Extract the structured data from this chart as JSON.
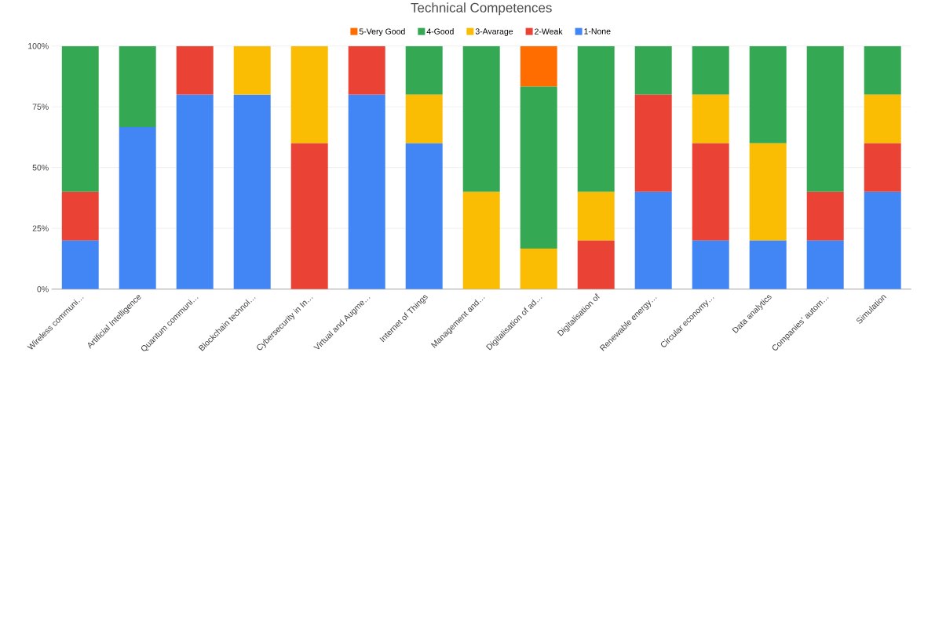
{
  "chart_data": {
    "type": "bar",
    "title": "Technical Competences",
    "categories": [
      "Wireless communi…",
      "Artificial Intelligence",
      "Quantum communi…",
      "Blockchain technol…",
      "Cybersecurity in In…",
      "Virtual and Augme…",
      "Internet of Things",
      "Management and…",
      "Digitalisation of ad…",
      "Digitalisation of",
      "Renewable energy…",
      "Circular economy…",
      "Data analytics",
      "Companies’ autom…",
      "Simulation"
    ],
    "series": [
      {
        "name": "1-None",
        "color": "#4285f4",
        "values": [
          20,
          66.7,
          80,
          80,
          0,
          80,
          60,
          0,
          0,
          0,
          40,
          20,
          20,
          20,
          40
        ]
      },
      {
        "name": "2-Weak",
        "color": "#ea4335",
        "values": [
          20,
          0,
          20,
          0,
          60,
          20,
          0,
          0,
          0,
          20,
          40,
          40,
          0,
          20,
          20
        ]
      },
      {
        "name": "3-Avarage",
        "color": "#fbbc04",
        "values": [
          0,
          0,
          0,
          20,
          40,
          0,
          20,
          40,
          16.7,
          20,
          0,
          20,
          40,
          0,
          20
        ]
      },
      {
        "name": "4-Good",
        "color": "#34a853",
        "values": [
          60,
          33.3,
          0,
          0,
          0,
          0,
          20,
          60,
          66.6,
          60,
          20,
          20,
          40,
          60,
          20
        ]
      },
      {
        "name": "5-Very Good",
        "color": "#ff6d01",
        "values": [
          0,
          0,
          0,
          0,
          0,
          0,
          0,
          0,
          16.7,
          0,
          0,
          0,
          0,
          0,
          0
        ]
      }
    ],
    "stacked": true,
    "ylim": [
      0,
      100
    ],
    "yticks": [
      {
        "value": 0,
        "label": "0%"
      },
      {
        "value": 25,
        "label": "25%"
      },
      {
        "value": 50,
        "label": "50%"
      },
      {
        "value": 75,
        "label": "75%"
      },
      {
        "value": 100,
        "label": "100%"
      }
    ],
    "grid": "y",
    "legend": "top"
  }
}
